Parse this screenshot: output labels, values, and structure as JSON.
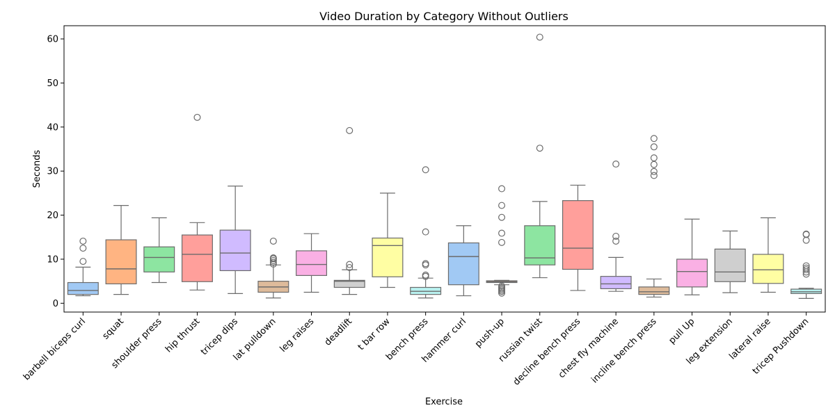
{
  "chart_data": {
    "type": "box",
    "title": "Video Duration by Category Without Outliers",
    "xlabel": "Exercise",
    "ylabel": "Seconds",
    "ylim": [
      -2,
      63
    ],
    "yticks": [
      0,
      10,
      20,
      30,
      40,
      50,
      60
    ],
    "grid": false,
    "categories": [
      {
        "name": "barbell biceps curl",
        "color": "#a1c9f4",
        "min": 1.7,
        "q1": 2.0,
        "median": 2.9,
        "q3": 4.7,
        "max": 8.2,
        "outliers": [
          9.5,
          12.5,
          14.1
        ]
      },
      {
        "name": "squat",
        "color": "#ffb482",
        "min": 2.0,
        "q1": 4.4,
        "median": 7.8,
        "q3": 14.4,
        "max": 22.2,
        "outliers": []
      },
      {
        "name": "shoulder press",
        "color": "#8de5a1",
        "min": 4.7,
        "q1": 7.1,
        "median": 10.4,
        "q3": 12.8,
        "max": 19.4,
        "outliers": []
      },
      {
        "name": "hip thrust",
        "color": "#ff9f9b",
        "min": 3.0,
        "q1": 4.9,
        "median": 11.1,
        "q3": 15.5,
        "max": 18.3,
        "outliers": [
          42.2
        ]
      },
      {
        "name": "tricep dips",
        "color": "#d0bbff",
        "min": 2.2,
        "q1": 7.4,
        "median": 11.4,
        "q3": 16.6,
        "max": 26.6,
        "outliers": []
      },
      {
        "name": "lat pulldown",
        "color": "#debb9b",
        "min": 1.2,
        "q1": 2.5,
        "median": 3.7,
        "q3": 5.0,
        "max": 8.7,
        "outliers": [
          8.9,
          9.3,
          9.7,
          10.1,
          10.3,
          14.1
        ]
      },
      {
        "name": "leg raises",
        "color": "#fab0e4",
        "min": 2.5,
        "q1": 6.3,
        "median": 8.8,
        "q3": 11.9,
        "max": 15.8,
        "outliers": []
      },
      {
        "name": "deadlift",
        "color": "#cfcfcf",
        "min": 2.0,
        "q1": 3.6,
        "median": 5.0,
        "q3": 5.2,
        "max": 7.6,
        "outliers": [
          8.1,
          8.8,
          39.2
        ]
      },
      {
        "name": "t bar row",
        "color": "#fffea3",
        "min": 3.6,
        "q1": 6.0,
        "median": 13.1,
        "q3": 14.8,
        "max": 25.0,
        "outliers": []
      },
      {
        "name": "bench press",
        "color": "#b9f2f0",
        "min": 1.2,
        "q1": 2.0,
        "median": 2.7,
        "q3": 3.6,
        "max": 5.7,
        "outliers": [
          6.1,
          6.4,
          8.7,
          9.0,
          16.2,
          30.3
        ]
      },
      {
        "name": "hammer curl",
        "color": "#a1c9f4",
        "min": 1.7,
        "q1": 4.2,
        "median": 10.6,
        "q3": 13.7,
        "max": 17.6,
        "outliers": []
      },
      {
        "name": "push-up",
        "color": "#ffb482",
        "min": 4.2,
        "q1": 4.7,
        "median": 4.9,
        "q3": 5.1,
        "max": 5.2,
        "outliers": [
          2.3,
          2.7,
          3.0,
          3.3,
          3.6,
          3.9,
          13.8,
          15.9,
          19.5,
          22.2,
          26.0
        ]
      },
      {
        "name": "russian twist",
        "color": "#8de5a1",
        "min": 5.8,
        "q1": 8.7,
        "median": 10.3,
        "q3": 17.6,
        "max": 23.1,
        "outliers": [
          35.2,
          60.4
        ]
      },
      {
        "name": "decline bench press",
        "color": "#ff9f9b",
        "min": 2.9,
        "q1": 7.7,
        "median": 12.5,
        "q3": 23.3,
        "max": 26.8,
        "outliers": []
      },
      {
        "name": "chest fly machine",
        "color": "#d0bbff",
        "min": 2.7,
        "q1": 3.3,
        "median": 4.4,
        "q3": 6.1,
        "max": 10.4,
        "outliers": [
          14.1,
          15.2,
          31.6
        ]
      },
      {
        "name": "incline bench press",
        "color": "#debb9b",
        "min": 1.4,
        "q1": 2.0,
        "median": 2.6,
        "q3": 3.7,
        "max": 5.5,
        "outliers": [
          29.0,
          29.9,
          31.5,
          33.0,
          35.5,
          37.4
        ]
      },
      {
        "name": "pull Up",
        "color": "#fab0e4",
        "min": 1.9,
        "q1": 3.7,
        "median": 7.2,
        "q3": 10.0,
        "max": 19.1,
        "outliers": []
      },
      {
        "name": "leg extension",
        "color": "#cfcfcf",
        "min": 2.4,
        "q1": 4.9,
        "median": 7.1,
        "q3": 12.3,
        "max": 16.4,
        "outliers": []
      },
      {
        "name": "lateral raise",
        "color": "#fffea3",
        "min": 2.5,
        "q1": 4.5,
        "median": 7.6,
        "q3": 11.1,
        "max": 19.4,
        "outliers": []
      },
      {
        "name": "tricep Pushdown",
        "color": "#b9f2f0",
        "min": 1.1,
        "q1": 2.2,
        "median": 2.6,
        "q3": 3.2,
        "max": 3.4,
        "outliers": [
          6.6,
          7.1,
          7.6,
          8.0,
          8.5,
          14.3,
          15.6,
          15.7
        ]
      }
    ]
  }
}
